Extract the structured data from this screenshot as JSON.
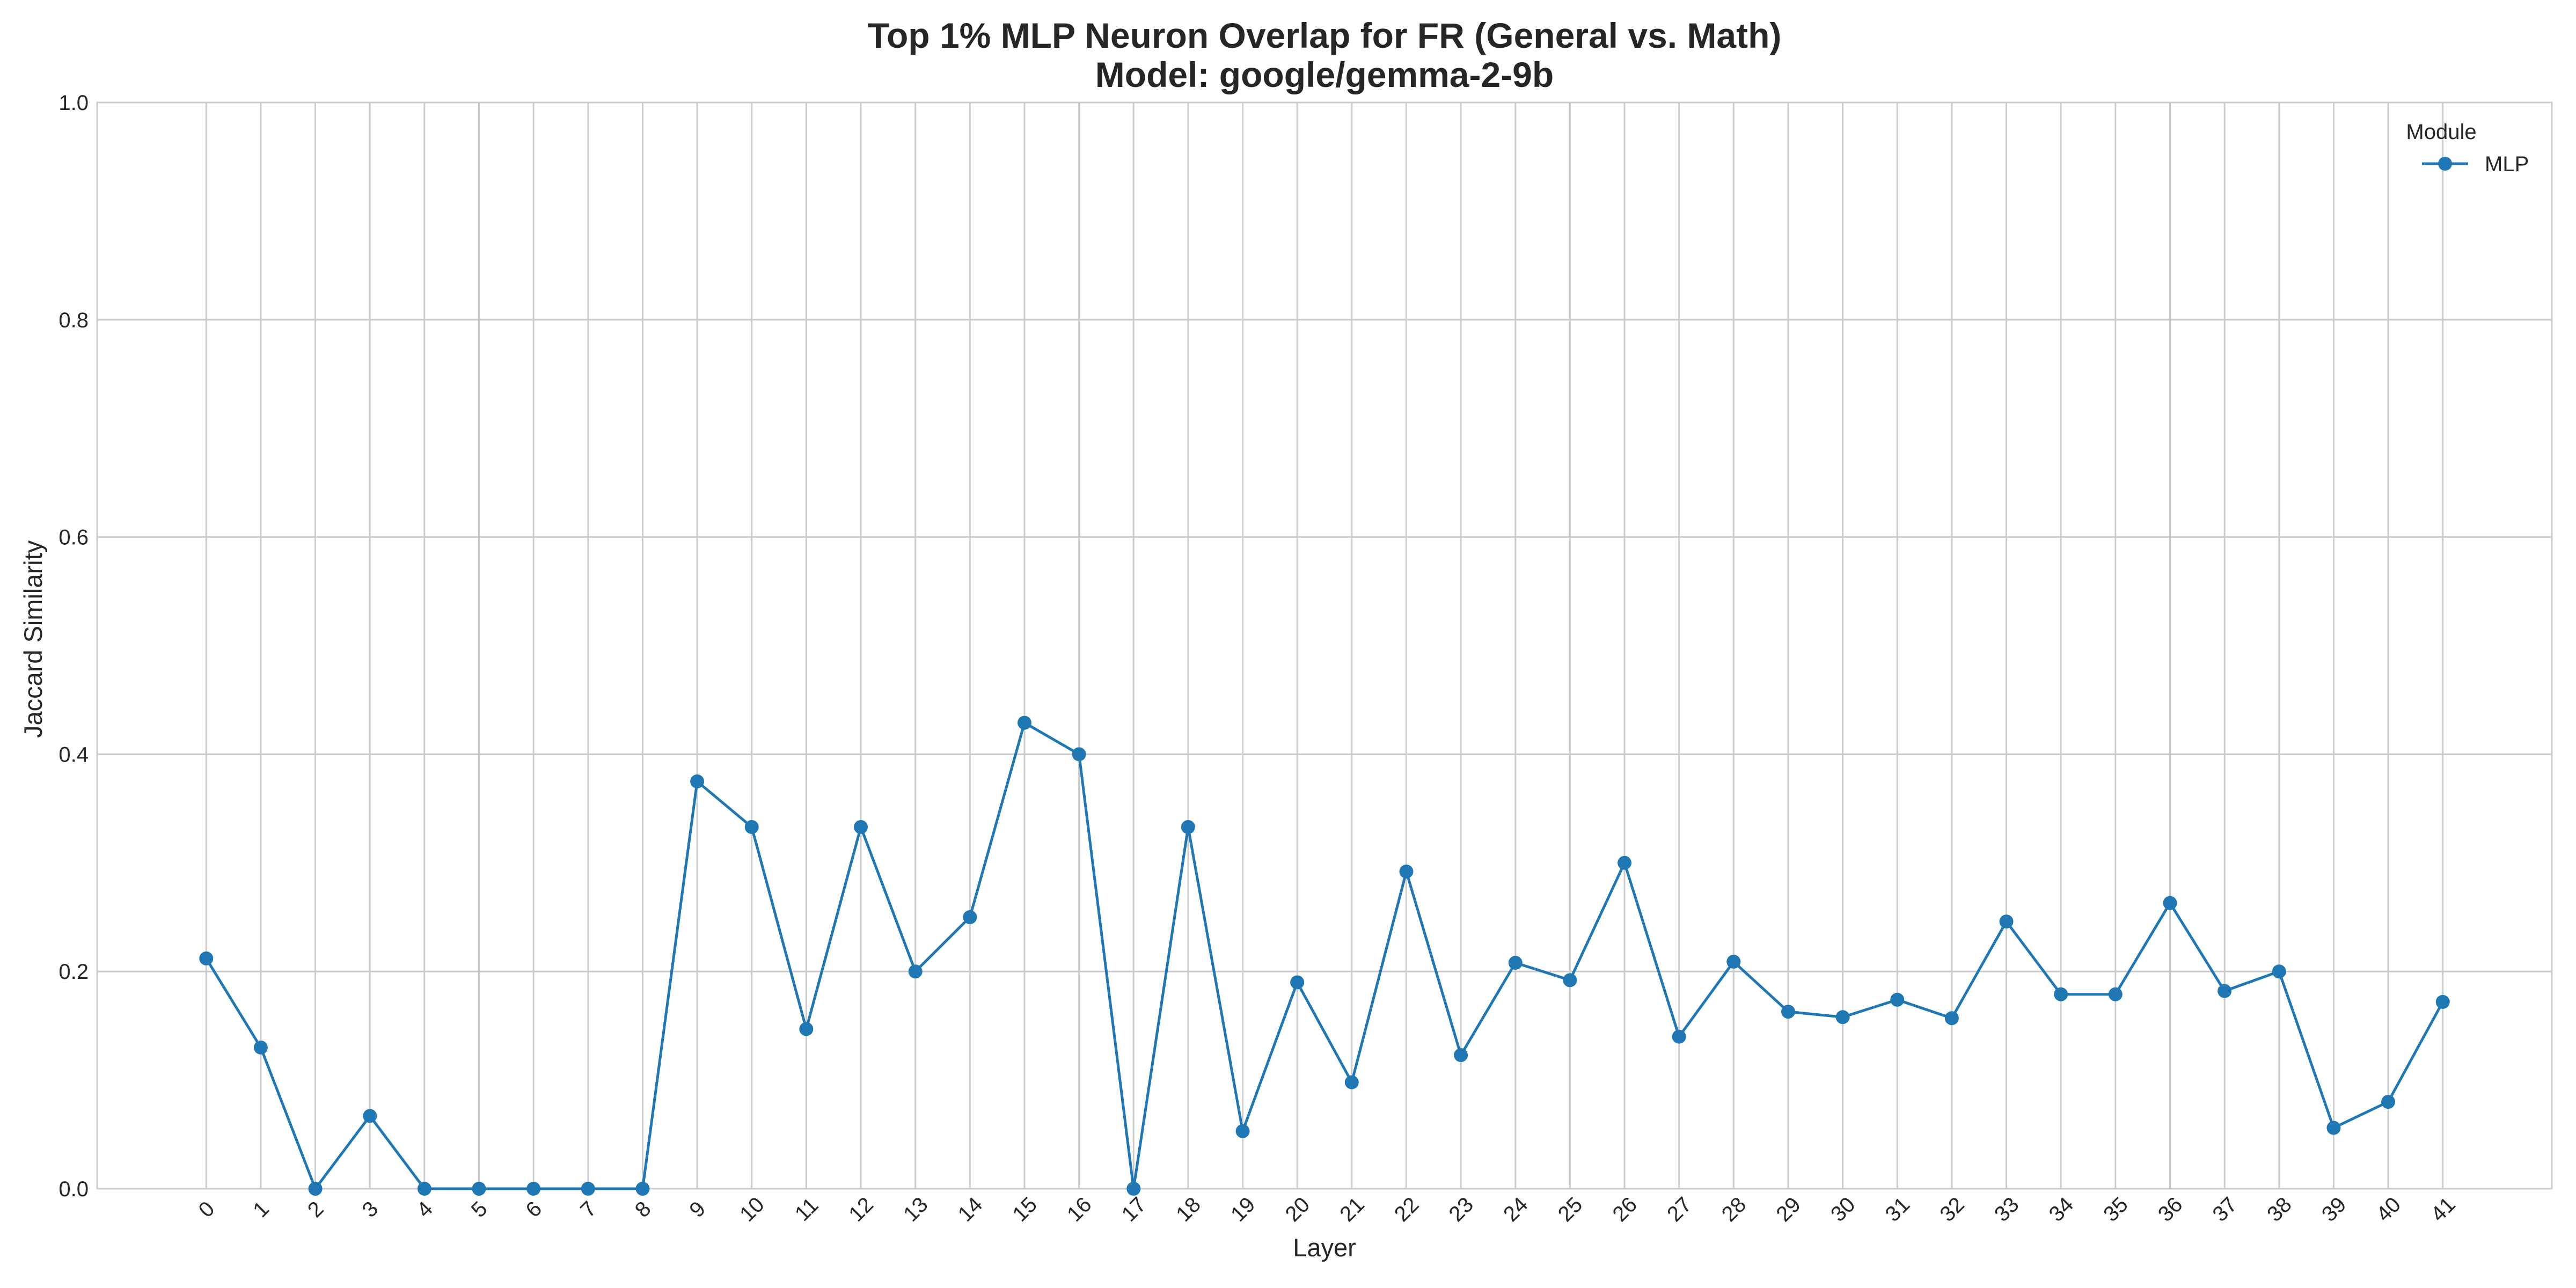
{
  "chart_data": {
    "type": "line",
    "title_line1": "Top 1% MLP Neuron Overlap for FR (General vs. Math)",
    "title_line2": "Model: google/gemma-2-9b",
    "xlabel": "Layer",
    "ylabel": "Jaccard Similarity",
    "ylim": [
      0.0,
      1.0
    ],
    "yticks": [
      "0.0",
      "0.2",
      "0.4",
      "0.6",
      "0.8",
      "1.0"
    ],
    "x": [
      0,
      1,
      2,
      3,
      4,
      5,
      6,
      7,
      8,
      9,
      10,
      11,
      12,
      13,
      14,
      15,
      16,
      17,
      18,
      19,
      20,
      21,
      22,
      23,
      24,
      25,
      26,
      27,
      28,
      29,
      30,
      31,
      32,
      33,
      34,
      35,
      36,
      37,
      38,
      39,
      40,
      41
    ],
    "xticks": [
      "0",
      "1",
      "2",
      "3",
      "4",
      "5",
      "6",
      "7",
      "8",
      "9",
      "10",
      "11",
      "12",
      "13",
      "14",
      "15",
      "16",
      "17",
      "18",
      "19",
      "20",
      "21",
      "22",
      "23",
      "24",
      "25",
      "26",
      "27",
      "28",
      "29",
      "30",
      "31",
      "32",
      "33",
      "34",
      "35",
      "36",
      "37",
      "38",
      "39",
      "40",
      "41"
    ],
    "series": [
      {
        "name": "MLP",
        "values": [
          0.212,
          0.13,
          0.0,
          0.067,
          0.0,
          0.0,
          0.0,
          0.0,
          0.0,
          0.375,
          0.333,
          0.147,
          0.333,
          0.2,
          0.25,
          0.429,
          0.4,
          0.0,
          0.333,
          0.053,
          0.19,
          0.098,
          0.292,
          0.123,
          0.208,
          0.192,
          0.3,
          0.14,
          0.209,
          0.163,
          0.158,
          0.174,
          0.157,
          0.246,
          0.179,
          0.179,
          0.263,
          0.182,
          0.2,
          0.056,
          0.08,
          0.172
        ]
      }
    ],
    "legend": {
      "title": "Module",
      "placement": "top-right"
    },
    "grid": true,
    "colors": {
      "line": "#1f77b4",
      "grid": "#cccccc",
      "spine": "#cccccc"
    }
  }
}
